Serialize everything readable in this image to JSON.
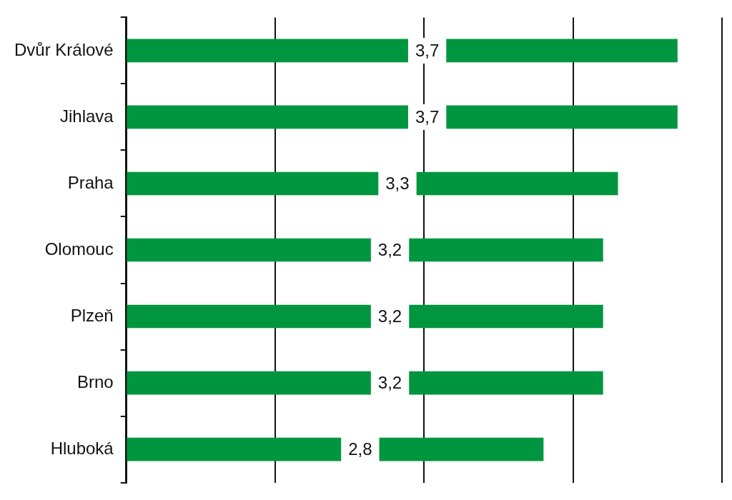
{
  "chart_data": {
    "type": "bar",
    "orientation": "horizontal",
    "categories": [
      "Dvůr Králové",
      "Jihlava",
      "Praha",
      "Olomouc",
      "Plzeň",
      "Brno",
      "Hluboká"
    ],
    "values": [
      3.7,
      3.7,
      3.3,
      3.2,
      3.2,
      3.2,
      2.8
    ],
    "value_labels": [
      "3,7",
      "3,7",
      "3,3",
      "3,2",
      "3,2",
      "3,2",
      "2,8"
    ],
    "color": "#00963f",
    "xlim": [
      0,
      4
    ],
    "xticks": [
      {
        "value": 0,
        "label": null
      },
      {
        "value": 1,
        "label": null
      },
      {
        "value": 2,
        "label": null
      },
      {
        "value": 3,
        "label": null
      },
      {
        "value": 4,
        "label": null
      }
    ],
    "grid": "x",
    "tick_labels": "y",
    "legend": false
  }
}
